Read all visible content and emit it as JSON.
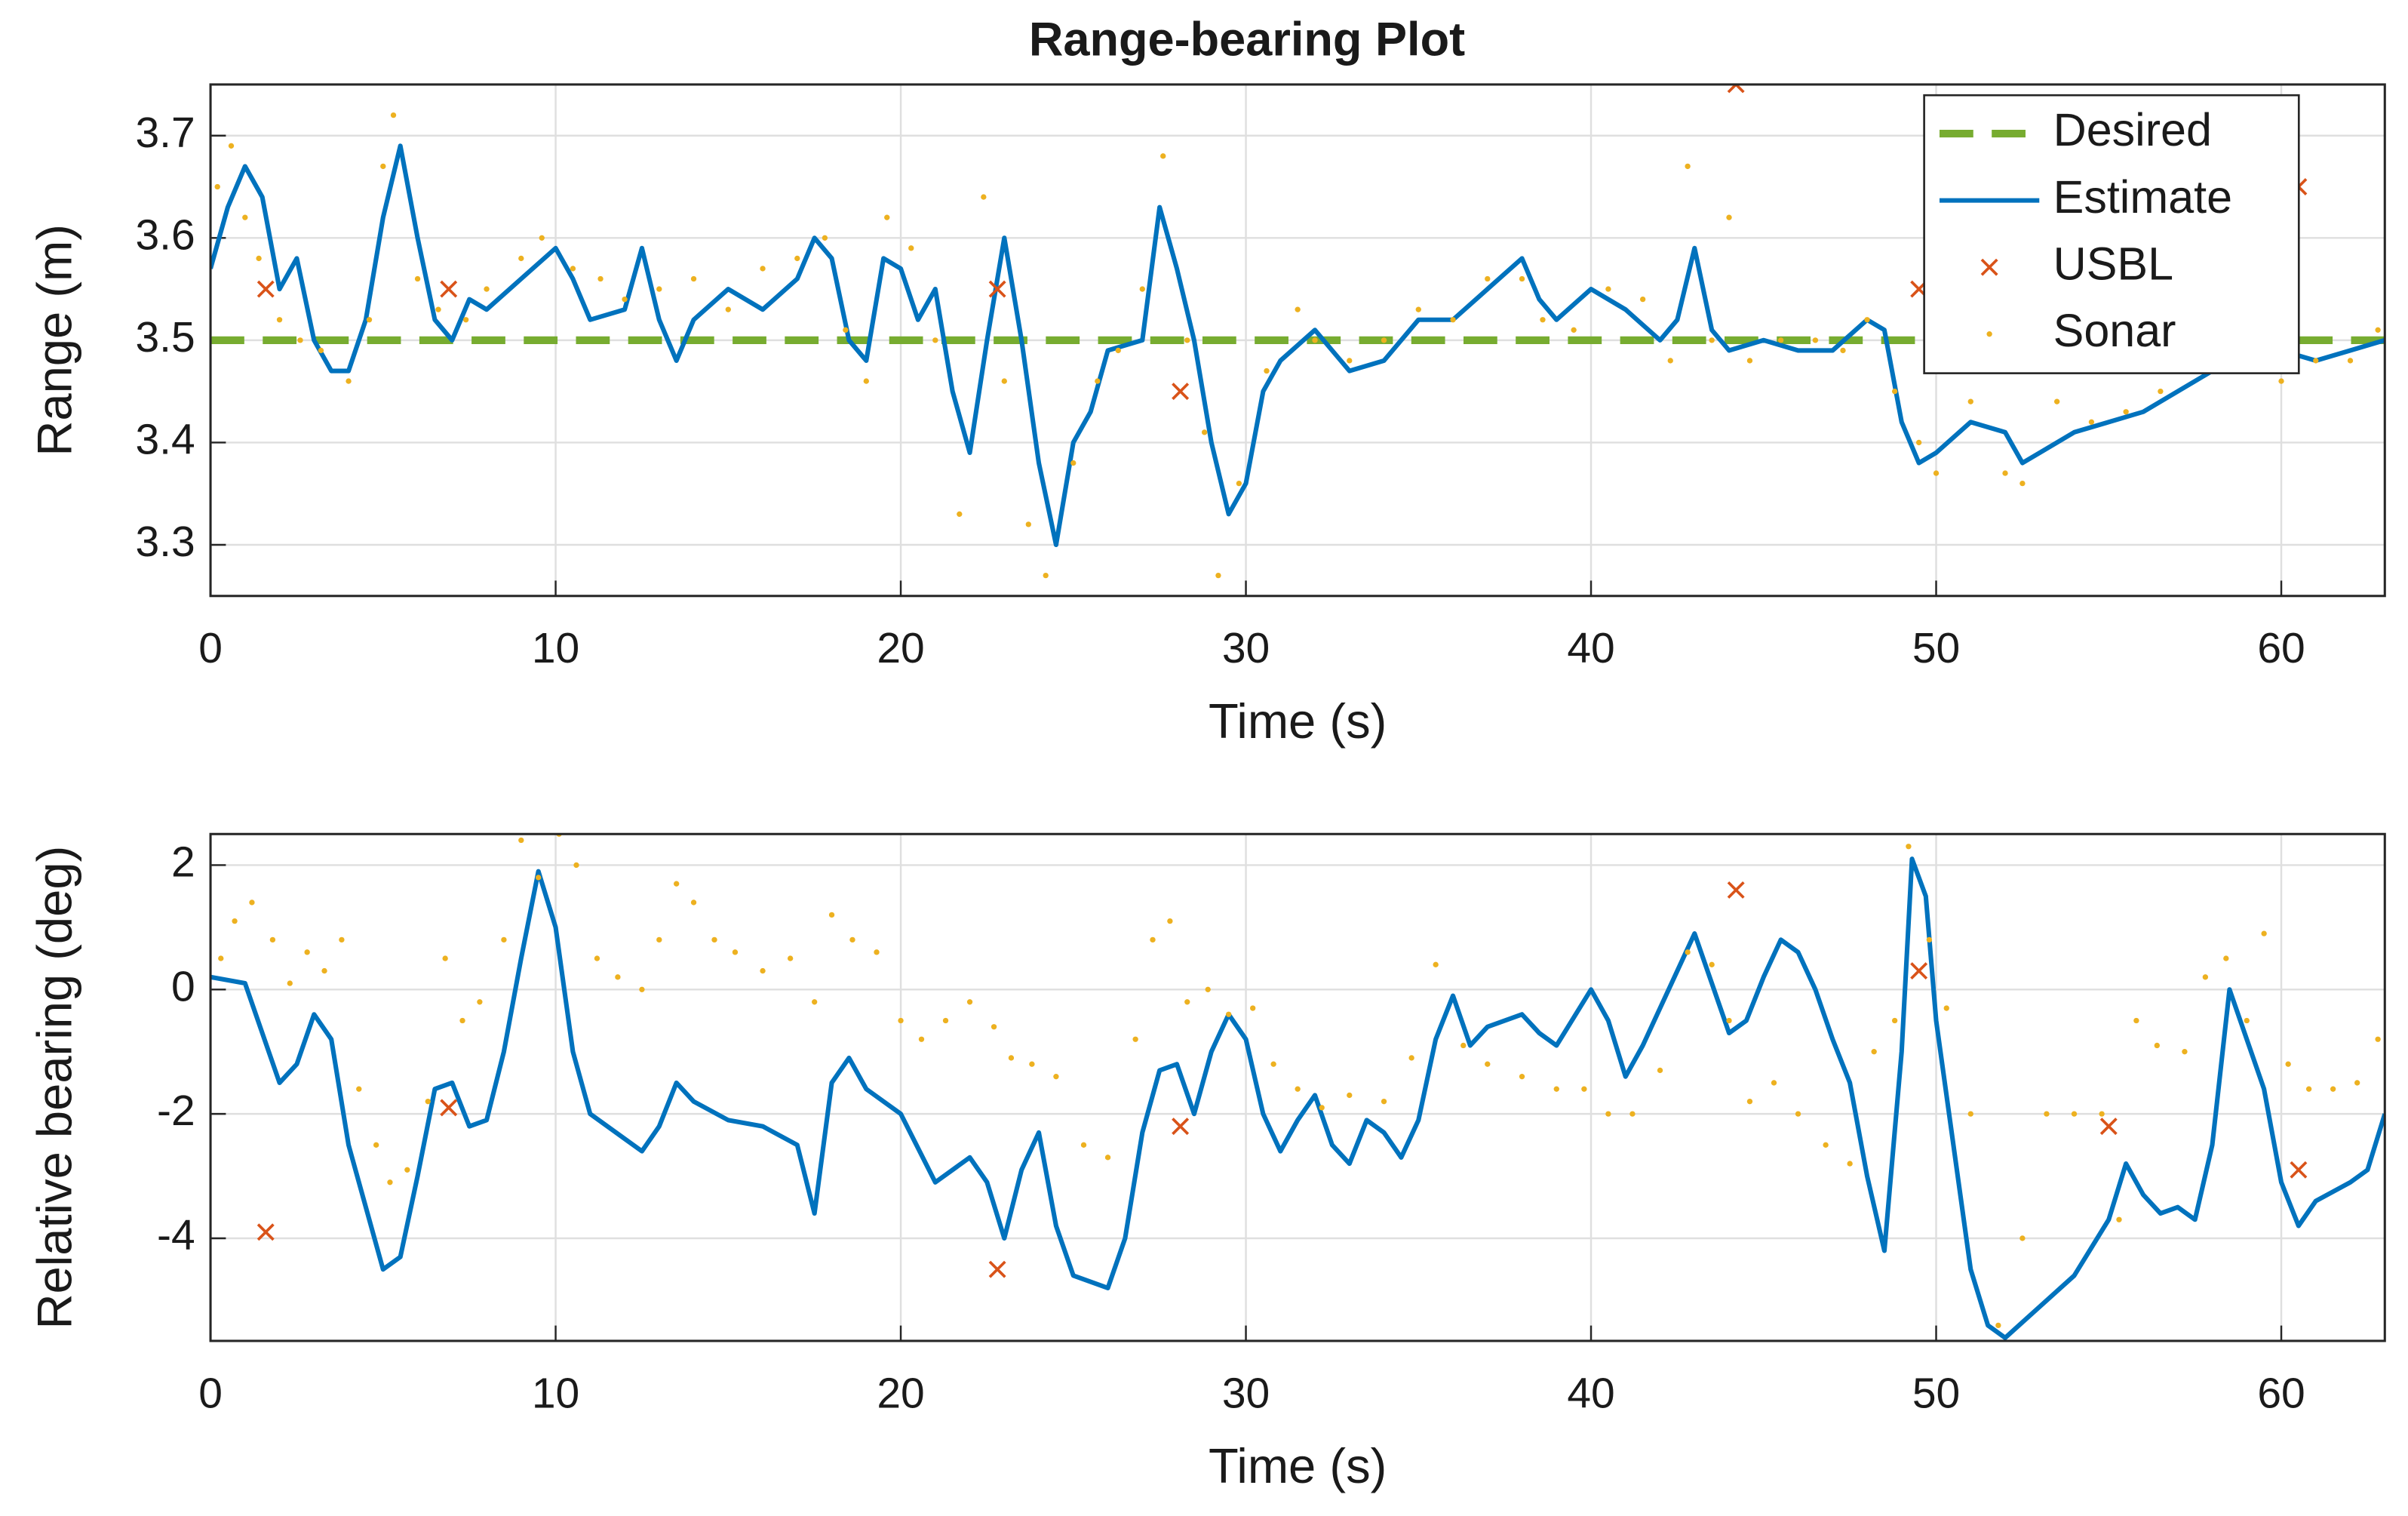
{
  "chart_data": [
    {
      "type": "line",
      "title": "Range-bearing Plot",
      "xlabel": "Time (s)",
      "ylabel": "Range (m)",
      "xlim": [
        0,
        63
      ],
      "ylim": [
        3.25,
        3.75
      ],
      "xticks": [
        0,
        10,
        20,
        30,
        40,
        50,
        60
      ],
      "yticks": [
        3.3,
        3.4,
        3.5,
        3.6,
        3.7
      ],
      "grid": true,
      "legend": "upper right",
      "series": [
        {
          "name": "Desired",
          "color": "#77ac30",
          "line": "dashed",
          "marker": "none",
          "x": [
            0,
            63
          ],
          "values": [
            3.5,
            3.5
          ]
        },
        {
          "name": "Estimate",
          "color": "#0072bd",
          "line": "solid",
          "marker": "none",
          "x": [
            0,
            0.5,
            1,
            1.5,
            2,
            2.5,
            3,
            3.5,
            4,
            4.5,
            5,
            5.5,
            6,
            6.5,
            7,
            7.5,
            8,
            9,
            10,
            10.5,
            11,
            12,
            12.5,
            13,
            13.5,
            14,
            15,
            16,
            17,
            17.5,
            18,
            18.5,
            19,
            19.5,
            20,
            20.5,
            21,
            21.5,
            22,
            22.5,
            23,
            23.5,
            24,
            24.5,
            25,
            25.5,
            26,
            27,
            27.5,
            28,
            28.5,
            29,
            29.5,
            30,
            30.5,
            31,
            32,
            32.5,
            33,
            34,
            35,
            36,
            37,
            38,
            38.5,
            39,
            40,
            41,
            42,
            42.5,
            43,
            43.5,
            44,
            45,
            46,
            47,
            48,
            48.5,
            49,
            49.5,
            50,
            51,
            52,
            52.5,
            53,
            54,
            55,
            56,
            57,
            58,
            59,
            60,
            61,
            62,
            63
          ],
          "values": [
            3.57,
            3.63,
            3.67,
            3.64,
            3.55,
            3.58,
            3.5,
            3.47,
            3.47,
            3.52,
            3.62,
            3.69,
            3.6,
            3.52,
            3.5,
            3.54,
            3.53,
            3.56,
            3.59,
            3.56,
            3.52,
            3.53,
            3.59,
            3.52,
            3.48,
            3.52,
            3.55,
            3.53,
            3.56,
            3.6,
            3.58,
            3.5,
            3.48,
            3.58,
            3.57,
            3.52,
            3.55,
            3.45,
            3.39,
            3.5,
            3.6,
            3.5,
            3.38,
            3.3,
            3.4,
            3.43,
            3.49,
            3.5,
            3.63,
            3.57,
            3.5,
            3.4,
            3.33,
            3.36,
            3.45,
            3.48,
            3.51,
            3.49,
            3.47,
            3.48,
            3.52,
            3.52,
            3.55,
            3.58,
            3.54,
            3.52,
            3.55,
            3.53,
            3.5,
            3.52,
            3.59,
            3.51,
            3.49,
            3.5,
            3.49,
            3.49,
            3.52,
            3.51,
            3.42,
            3.38,
            3.39,
            3.42,
            3.41,
            3.38,
            3.39,
            3.41,
            3.42,
            3.43,
            3.45,
            3.47,
            3.48,
            3.49,
            3.48,
            3.49,
            3.5
          ]
        },
        {
          "name": "USBL",
          "color": "#d95319",
          "line": "none",
          "marker": "x",
          "x": [
            1.6,
            6.9,
            22.8,
            28.1,
            44.2,
            49.5,
            60.5
          ],
          "values": [
            3.55,
            3.55,
            3.55,
            3.45,
            3.75,
            3.55,
            3.65
          ]
        },
        {
          "name": "Sonar",
          "color": "#edb120",
          "line": "none",
          "marker": "point",
          "x": [
            0.2,
            0.6,
            1,
            1.4,
            2,
            2.6,
            3.2,
            4,
            4.6,
            5,
            5.3,
            6,
            6.6,
            7.4,
            8,
            9,
            9.6,
            10.5,
            11.3,
            12,
            13,
            14,
            15,
            16,
            17,
            17.8,
            18.4,
            19,
            19.6,
            20.3,
            21,
            21.7,
            22.4,
            23,
            23.7,
            24.2,
            25,
            25.7,
            26.3,
            27,
            27.6,
            28.3,
            28.8,
            29.2,
            29.8,
            30.6,
            31.5,
            32,
            33,
            34,
            35,
            36,
            37,
            38,
            38.6,
            39.5,
            40.5,
            41.5,
            42.3,
            42.8,
            43.5,
            44,
            44.6,
            45.5,
            46.5,
            47.3,
            48,
            48.8,
            49.5,
            50,
            51,
            52,
            52.5,
            53.5,
            54.5,
            55.5,
            56.5,
            57.5,
            58.5,
            59.5,
            60,
            61,
            62,
            62.8
          ],
          "values": [
            3.65,
            3.69,
            3.62,
            3.58,
            3.52,
            3.5,
            3.49,
            3.46,
            3.52,
            3.67,
            3.72,
            3.56,
            3.53,
            3.52,
            3.55,
            3.58,
            3.6,
            3.57,
            3.56,
            3.54,
            3.55,
            3.56,
            3.53,
            3.57,
            3.58,
            3.6,
            3.51,
            3.46,
            3.62,
            3.59,
            3.5,
            3.33,
            3.64,
            3.46,
            3.32,
            3.27,
            3.38,
            3.46,
            3.49,
            3.55,
            3.68,
            3.5,
            3.41,
            3.27,
            3.36,
            3.47,
            3.53,
            3.5,
            3.48,
            3.5,
            3.53,
            3.52,
            3.56,
            3.56,
            3.52,
            3.51,
            3.55,
            3.54,
            3.48,
            3.67,
            3.5,
            3.62,
            3.48,
            3.5,
            3.5,
            3.49,
            3.52,
            3.45,
            3.4,
            3.37,
            3.44,
            3.37,
            3.36,
            3.44,
            3.42,
            3.43,
            3.45,
            3.47,
            3.49,
            3.5,
            3.46,
            3.48,
            3.48,
            3.51
          ]
        }
      ]
    },
    {
      "type": "line",
      "xlabel": "Time (s)",
      "ylabel": "Relative bearing (deg)",
      "xlim": [
        0,
        63
      ],
      "ylim": [
        -5.65,
        2.5
      ],
      "xticks": [
        0,
        10,
        20,
        30,
        40,
        50,
        60
      ],
      "yticks": [
        -4,
        -2,
        0,
        2
      ],
      "grid": true,
      "series": [
        {
          "color": "#0072bd",
          "line": "solid",
          "marker": "none",
          "x": [
            0,
            1,
            2,
            2.5,
            3,
            3.5,
            4,
            5,
            5.5,
            6,
            6.5,
            7,
            7.5,
            8,
            8.5,
            9,
            9.5,
            10,
            10.5,
            11,
            12,
            12.5,
            13,
            13.5,
            14,
            15,
            16,
            17,
            17.5,
            18,
            18.5,
            19,
            20,
            21,
            22,
            22.5,
            23,
            23.5,
            24,
            24.5,
            25,
            26,
            26.5,
            27,
            27.5,
            28,
            28.5,
            29,
            29.5,
            30,
            30.5,
            31,
            31.5,
            32,
            32.5,
            33,
            33.5,
            34,
            34.5,
            35,
            35.5,
            36,
            36.5,
            37,
            38,
            38.5,
            39,
            40,
            40.5,
            41,
            41.5,
            42,
            43,
            43.5,
            44,
            44.5,
            45,
            45.5,
            46,
            46.5,
            47,
            47.5,
            48,
            48.5,
            49,
            49.3,
            49.7,
            50,
            50.5,
            51,
            51.5,
            52,
            53,
            54,
            55,
            55.5,
            56,
            56.5,
            57,
            57.5,
            58,
            58.5,
            59,
            59.5,
            60,
            60.5,
            61,
            62,
            62.5,
            63
          ],
          "values": [
            0.2,
            0.1,
            -1.5,
            -1.2,
            -0.4,
            -0.8,
            -2.5,
            -4.5,
            -4.3,
            -3,
            -1.6,
            -1.5,
            -2.2,
            -2.1,
            -1,
            0.5,
            1.9,
            1,
            -1,
            -2,
            -2.4,
            -2.6,
            -2.2,
            -1.5,
            -1.8,
            -2.1,
            -2.2,
            -2.5,
            -3.6,
            -1.5,
            -1.1,
            -1.6,
            -2,
            -3.1,
            -2.7,
            -3.1,
            -4,
            -2.9,
            -2.3,
            -3.8,
            -4.6,
            -4.8,
            -4,
            -2.3,
            -1.3,
            -1.2,
            -2,
            -1,
            -0.4,
            -0.8,
            -2,
            -2.6,
            -2.1,
            -1.7,
            -2.5,
            -2.8,
            -2.1,
            -2.3,
            -2.7,
            -2.1,
            -0.8,
            -0.1,
            -0.9,
            -0.6,
            -0.4,
            -0.7,
            -0.9,
            0,
            -0.5,
            -1.4,
            -0.9,
            -0.3,
            0.9,
            0.1,
            -0.7,
            -0.5,
            0.2,
            0.8,
            0.6,
            0,
            -0.8,
            -1.5,
            -3,
            -4.2,
            -1,
            2.1,
            1.5,
            -0.5,
            -2.5,
            -4.5,
            -5.4,
            -5.6,
            -5.1,
            -4.6,
            -3.7,
            -2.8,
            -3.3,
            -3.6,
            -3.5,
            -3.7,
            -2.5,
            0,
            -0.8,
            -1.6,
            -3.1,
            -3.8,
            -3.4,
            -3.1,
            -2.9,
            -2
          ]
        },
        {
          "color": "#d95319",
          "line": "none",
          "marker": "x",
          "x": [
            1.6,
            6.9,
            22.8,
            28.1,
            44.2,
            49.5,
            55,
            60.5
          ],
          "values": [
            -3.9,
            -1.9,
            -4.5,
            -2.2,
            1.6,
            0.3,
            -2.2,
            -2.9
          ]
        },
        {
          "color": "#edb120",
          "line": "none",
          "marker": "point",
          "x": [
            0.3,
            0.7,
            1.2,
            1.8,
            2.3,
            2.8,
            3.3,
            3.8,
            4.3,
            4.8,
            5.2,
            5.7,
            6.3,
            6.8,
            7.3,
            7.8,
            8.5,
            9,
            9.5,
            10.1,
            10.6,
            11.2,
            11.8,
            12.5,
            13,
            13.5,
            14,
            14.6,
            15.2,
            16,
            16.8,
            17.5,
            18,
            18.6,
            19.3,
            20,
            20.6,
            21.3,
            22,
            22.7,
            23.2,
            23.8,
            24.5,
            25.3,
            26,
            26.8,
            27.3,
            27.8,
            28.3,
            28.9,
            29.5,
            30.2,
            30.8,
            31.5,
            32.2,
            33,
            34,
            34.8,
            35.5,
            36.3,
            37,
            38,
            39,
            39.8,
            40.5,
            41.2,
            42,
            42.8,
            43.5,
            44,
            44.6,
            45.3,
            46,
            46.8,
            47.5,
            48.2,
            48.8,
            49.2,
            49.8,
            50.3,
            51,
            51.8,
            52.5,
            53.2,
            54,
            54.8,
            55.3,
            55.8,
            56.4,
            57.2,
            57.8,
            58.4,
            59,
            59.5,
            60.2,
            60.8,
            61.5,
            62.2,
            62.8
          ],
          "values": [
            0.5,
            1.1,
            1.4,
            0.8,
            0.1,
            0.6,
            0.3,
            0.8,
            -1.6,
            -2.5,
            -3.1,
            -2.9,
            -1.8,
            0.5,
            -0.5,
            -0.2,
            0.8,
            2.4,
            1.8,
            2.5,
            2,
            0.5,
            0.2,
            0,
            0.8,
            1.7,
            1.4,
            0.8,
            0.6,
            0.3,
            0.5,
            -0.2,
            1.2,
            0.8,
            0.6,
            -0.5,
            -0.8,
            -0.5,
            -0.2,
            -0.6,
            -1.1,
            -1.2,
            -1.4,
            -2.5,
            -2.7,
            -0.8,
            0.8,
            1.1,
            -0.2,
            0,
            -0.4,
            -0.3,
            -1.2,
            -1.6,
            -1.9,
            -1.7,
            -1.8,
            -1.1,
            0.4,
            -0.9,
            -1.2,
            -1.4,
            -1.6,
            -1.6,
            -2,
            -2,
            -1.3,
            0.6,
            0.4,
            -0.5,
            -1.8,
            -1.5,
            -2,
            -2.5,
            -2.8,
            -1,
            -0.5,
            2.3,
            0.8,
            -0.3,
            -2,
            -5.4,
            -4,
            -2,
            -2,
            -2,
            -3.7,
            -0.5,
            -0.9,
            -1,
            0.2,
            0.5,
            -0.5,
            0.9,
            -1.2,
            -1.6,
            -1.6,
            -1.5,
            -0.8
          ]
        }
      ]
    }
  ]
}
